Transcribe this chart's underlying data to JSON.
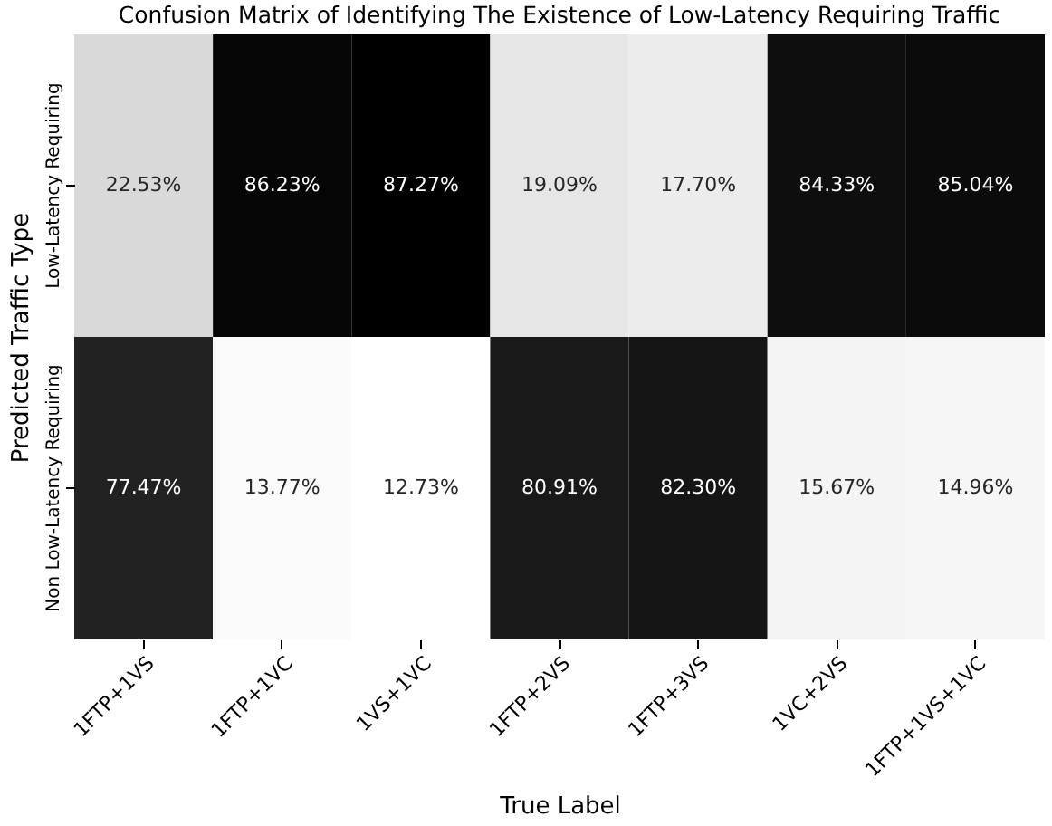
{
  "chart_data": {
    "type": "heatmap",
    "title": "Confusion Matrix of Identifying The Existence of Low-Latency Requiring Traffic",
    "xlabel": "True Label",
    "ylabel": "Predicted Traffic Type",
    "categories": [
      "1FTP+1VS",
      "1FTP+1VC",
      "1VS+1VC",
      "1FTP+2VS",
      "1FTP+3VS",
      "1VC+2VS",
      "1FTP+1VS+1VC"
    ],
    "y_categories": [
      "Low-Latency Requiring",
      "Non Low-Latency Requiring"
    ],
    "cells": [
      [
        22.53,
        86.23,
        87.27,
        19.09,
        17.7,
        84.33,
        85.04
      ],
      [
        77.47,
        13.77,
        12.73,
        80.91,
        82.3,
        15.67,
        14.96
      ]
    ],
    "cell_labels": [
      [
        "22.53%",
        "86.23%",
        "87.27%",
        "19.09%",
        "17.70%",
        "84.33%",
        "85.04%"
      ],
      [
        "77.47%",
        "13.77%",
        "12.73%",
        "80.91%",
        "82.30%",
        "15.67%",
        "14.96%"
      ]
    ]
  }
}
